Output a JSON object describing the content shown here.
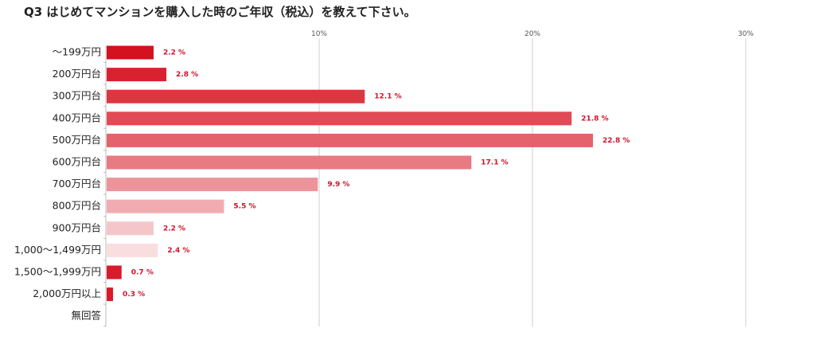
{
  "title": "Q3 はじめてマンションを購入した時のご年収（税込）を教えて下さい。",
  "chart_data": {
    "type": "bar",
    "orientation": "horizontal",
    "title": "Q3 はじめてマンションを購入した時のご年収（税込）を教えて下さい。",
    "categories": [
      "～199万円",
      "200万円台",
      "300万円台",
      "400万円台",
      "500万円台",
      "600万円台",
      "700万円台",
      "800万円台",
      "900万円台",
      "1,000～1,499万円",
      "1,500～1,999万円",
      "2,000万円以上",
      "無回答"
    ],
    "values": [
      2.2,
      2.8,
      12.1,
      21.8,
      22.8,
      17.1,
      9.9,
      5.5,
      2.2,
      2.4,
      0.7,
      0.3,
      null
    ],
    "value_labels": [
      "2.2 %",
      "2.8 %",
      "12.1 %",
      "21.8 %",
      "22.8 %",
      "17.1 %",
      "9.9 %",
      "5.5 %",
      "2.2 %",
      "2.4 %",
      "0.7 %",
      "0.3 %",
      ""
    ],
    "colors": [
      "#d4111f",
      "#d8222f",
      "#dc3640",
      "#e04b55",
      "#e4626b",
      "#e87a82",
      "#ed939a",
      "#f1acb1",
      "#f5c6c9",
      "#f9dee0",
      "#d81b2a",
      "#d81b2a",
      "#d81b2a"
    ],
    "xticks": [
      10,
      20,
      30
    ],
    "xtick_labels": [
      "10%",
      "20%",
      "30%"
    ],
    "xlim": [
      0,
      30
    ],
    "xlabel": "",
    "ylabel": "",
    "grid": true,
    "label_color": "#d0142c"
  }
}
